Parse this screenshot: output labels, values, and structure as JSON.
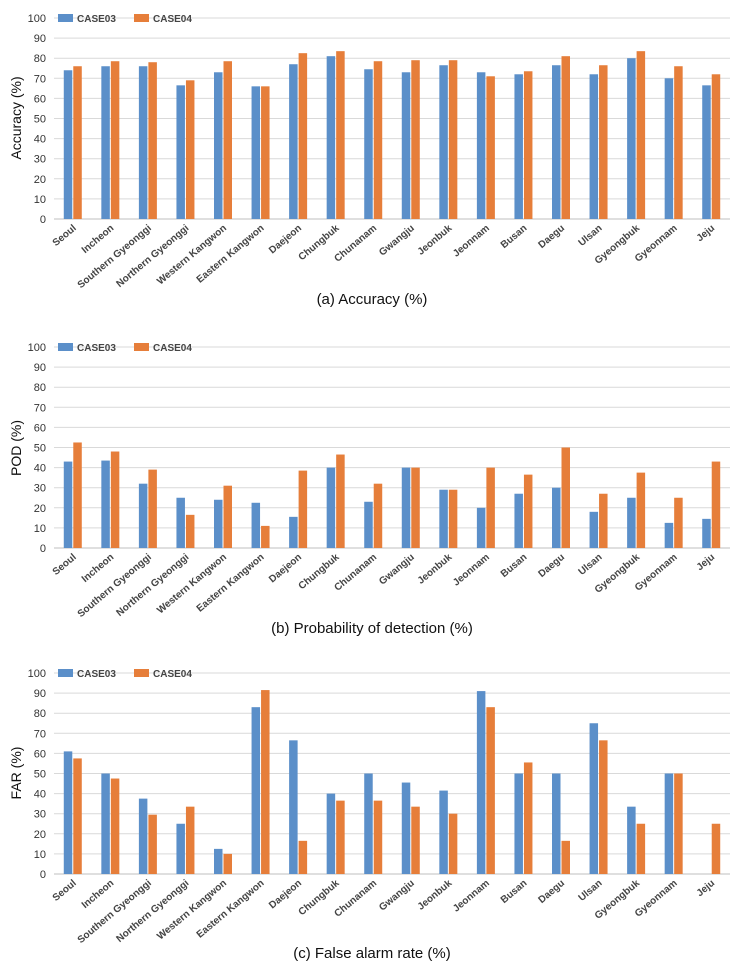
{
  "colors": {
    "case03": "#5b8fc9",
    "case04": "#e67e3a"
  },
  "chart_data": [
    {
      "type": "bar",
      "caption": "(a) Accuracy (%)",
      "ylabel": "Accuracy (%)",
      "ylim": [
        0,
        100
      ],
      "yticks": [
        "0",
        "10",
        "20",
        "30",
        "40",
        "50",
        "60",
        "70",
        "80",
        "90",
        "100"
      ],
      "categories": [
        "Seoul",
        "Incheon",
        "Southern Gyeonggi",
        "Northern Gyeonggi",
        "Western Kangwon",
        "Eastern Kangwon",
        "Daejeon",
        "Chungbuk",
        "Chunanam",
        "Gwangju",
        "Jeonbuk",
        "Jeonnam",
        "Busan",
        "Daegu",
        "Ulsan",
        "Gyeongbuk",
        "Gyeonnam",
        "Jeju"
      ],
      "series": [
        {
          "name": "CASE03",
          "values": [
            74,
            76,
            76,
            66.5,
            73,
            66,
            77,
            81,
            74.5,
            73,
            76.5,
            73,
            72,
            76.5,
            72,
            80,
            70,
            66.5
          ]
        },
        {
          "name": "CASE04",
          "values": [
            76,
            78.5,
            78,
            69,
            78.5,
            66,
            82.5,
            83.5,
            78.5,
            79,
            79,
            71,
            73.5,
            81,
            76.5,
            83.5,
            76,
            72
          ]
        }
      ]
    },
    {
      "type": "bar",
      "caption": "(b) Probability of detection (%)",
      "ylabel": "POD (%)",
      "ylim": [
        0,
        100
      ],
      "yticks": [
        "0",
        "10",
        "20",
        "30",
        "40",
        "50",
        "60",
        "70",
        "80",
        "90",
        "100"
      ],
      "categories": [
        "Seoul",
        "Incheon",
        "Southern Gyeonggi",
        "Northern Gyeonggi",
        "Western Kangwon",
        "Eastern Kangwon",
        "Daejeon",
        "Chungbuk",
        "Chunanam",
        "Gwangju",
        "Jeonbuk",
        "Jeonnam",
        "Busan",
        "Daegu",
        "Ulsan",
        "Gyeongbuk",
        "Gyeonnam",
        "Jeju"
      ],
      "series": [
        {
          "name": "CASE03",
          "values": [
            43,
            43.5,
            32,
            25,
            24,
            22.5,
            15.5,
            40,
            23,
            40,
            29,
            20,
            27,
            30,
            18,
            25,
            12.5,
            14.5
          ]
        },
        {
          "name": "CASE04",
          "values": [
            52.5,
            48,
            39,
            16.5,
            31,
            11,
            38.5,
            46.5,
            32,
            40,
            29,
            40,
            36.5,
            50,
            27,
            37.5,
            25,
            43
          ]
        }
      ]
    },
    {
      "type": "bar",
      "caption": "(c) False alarm rate (%)",
      "ylabel": "FAR (%)",
      "ylim": [
        0,
        100
      ],
      "yticks": [
        "0",
        "10",
        "20",
        "30",
        "40",
        "50",
        "60",
        "70",
        "80",
        "90",
        "100"
      ],
      "categories": [
        "Seoul",
        "Incheon",
        "Southern Gyeonggi",
        "Northern Gyeonggi",
        "Western Kangwon",
        "Eastern Kangwon",
        "Daejeon",
        "Chungbuk",
        "Chunanam",
        "Gwangju",
        "Jeonbuk",
        "Jeonnam",
        "Busan",
        "Daegu",
        "Ulsan",
        "Gyeongbuk",
        "Gyeonnam",
        "Jeju"
      ],
      "series": [
        {
          "name": "CASE03",
          "values": [
            61,
            50,
            37.5,
            25,
            12.5,
            83,
            66.5,
            40,
            50,
            45.5,
            41.5,
            91,
            50,
            50,
            75,
            33.5,
            50,
            0
          ]
        },
        {
          "name": "CASE04",
          "values": [
            57.5,
            47.5,
            29.5,
            33.5,
            10,
            91.5,
            16.5,
            36.5,
            36.5,
            33.5,
            30,
            83,
            55.5,
            16.5,
            66.5,
            25,
            50,
            25
          ]
        }
      ]
    }
  ]
}
